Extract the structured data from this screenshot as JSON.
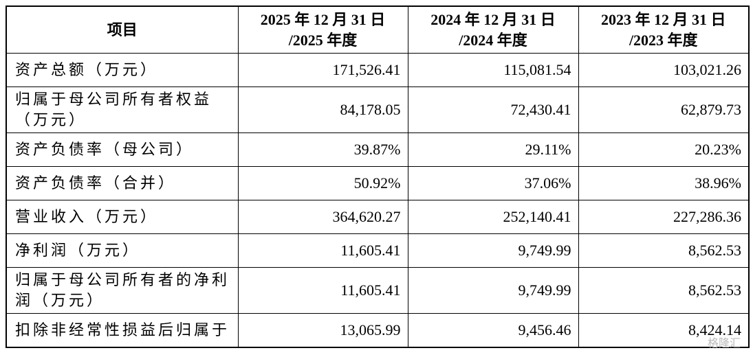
{
  "table": {
    "header": [
      [
        "项目"
      ],
      [
        "2025 年 12 月 31 日",
        "/2025 年度"
      ],
      [
        "2024 年 12 月 31 日",
        "/2024 年度"
      ],
      [
        "2023 年 12 月 31 日",
        "/2023 年度"
      ]
    ],
    "rows": [
      [
        [
          "资产总额（万元）"
        ],
        "171,526.41",
        "115,081.54",
        "103,021.26"
      ],
      [
        [
          "归属于母公司所有者权益",
          "（万元）"
        ],
        "84,178.05",
        "72,430.41",
        "62,879.73"
      ],
      [
        [
          "资产负债率（母公司）"
        ],
        "39.87%",
        "29.11%",
        "20.23%"
      ],
      [
        [
          "资产负债率（合并）"
        ],
        "50.92%",
        "37.06%",
        "38.96%"
      ],
      [
        [
          "营业收入（万元）"
        ],
        "364,620.27",
        "252,140.41",
        "227,286.36"
      ],
      [
        [
          "净利润（万元）"
        ],
        "11,605.41",
        "9,749.99",
        "8,562.53"
      ],
      [
        [
          "归属于母公司所有者的净利",
          "润（万元）"
        ],
        "11,605.41",
        "9,749.99",
        "8,562.53"
      ],
      [
        [
          "扣除非经常性损益后归属于"
        ],
        "13,065.99",
        "9,456.46",
        "8,424.14"
      ]
    ]
  },
  "watermark": "格隆汇"
}
